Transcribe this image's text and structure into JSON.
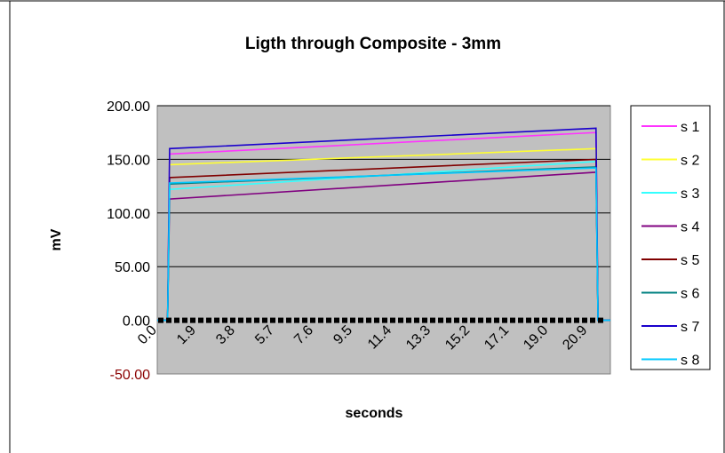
{
  "chart_data": {
    "type": "line",
    "title": "Ligth through Composite - 3mm",
    "xlabel": "seconds",
    "ylabel": "mV",
    "xlim": [
      0,
      22.0
    ],
    "ylim": [
      -50,
      200
    ],
    "y_ticks": [
      "-50.00",
      "0.00",
      "50.00",
      "100.00",
      "150.00",
      "200.00"
    ],
    "y_tick_values": [
      -50,
      0,
      50,
      100,
      150,
      200
    ],
    "x_ticks": [
      "0.0",
      "1.9",
      "3.8",
      "5.7",
      "7.6",
      "9.5",
      "11.4",
      "13.3",
      "15.2",
      "17.1",
      "19.0",
      "20.9"
    ],
    "x_tick_values": [
      0.0,
      1.9,
      3.8,
      5.7,
      7.6,
      9.5,
      11.4,
      13.3,
      15.2,
      17.1,
      19.0,
      20.9
    ],
    "grid": "horizontal",
    "legend_position": "right",
    "colors": {
      "plot_background": "#c0c0c0",
      "chart_background": "#ffffff",
      "gridline": "#000000",
      "negative_tick": "#8b0000"
    },
    "series": [
      {
        "name": "s 1",
        "color": "#ff33ff",
        "x": [
          0.0,
          0.5,
          0.6,
          21.3,
          21.4,
          22.0
        ],
        "y": [
          0,
          0,
          155,
          175,
          0,
          0
        ]
      },
      {
        "name": "s 2",
        "color": "#ffff33",
        "x": [
          0.0,
          0.5,
          0.6,
          21.3,
          21.4,
          22.0
        ],
        "y": [
          0,
          0,
          145,
          160,
          0,
          0
        ]
      },
      {
        "name": "s 3",
        "color": "#33ffff",
        "x": [
          0.0,
          0.5,
          0.6,
          21.3,
          21.4,
          22.0
        ],
        "y": [
          0,
          0,
          122,
          148,
          0,
          0
        ]
      },
      {
        "name": "s 4",
        "color": "#800080",
        "x": [
          0.0,
          0.5,
          0.6,
          21.3,
          21.4,
          22.0
        ],
        "y": [
          0,
          0,
          113,
          138,
          0,
          0
        ]
      },
      {
        "name": "s 5",
        "color": "#800000",
        "x": [
          0.0,
          0.5,
          0.6,
          21.3,
          21.4,
          22.0
        ],
        "y": [
          0,
          0,
          133,
          150,
          0,
          0
        ]
      },
      {
        "name": "s 6",
        "color": "#008080",
        "x": [
          0.0,
          0.5,
          0.6,
          21.3,
          21.4,
          22.0
        ],
        "y": [
          0,
          0,
          127,
          143,
          0,
          0
        ]
      },
      {
        "name": "s 7",
        "color": "#1a00cc",
        "x": [
          0.0,
          0.5,
          0.6,
          21.3,
          21.4,
          22.0
        ],
        "y": [
          0,
          0,
          160,
          179,
          0,
          0
        ]
      },
      {
        "name": "s 8",
        "color": "#00c8ff",
        "x": [
          0.0,
          0.5,
          0.6,
          21.3,
          21.4,
          22.0
        ],
        "y": [
          0,
          0,
          128,
          142,
          0,
          0
        ]
      }
    ]
  }
}
